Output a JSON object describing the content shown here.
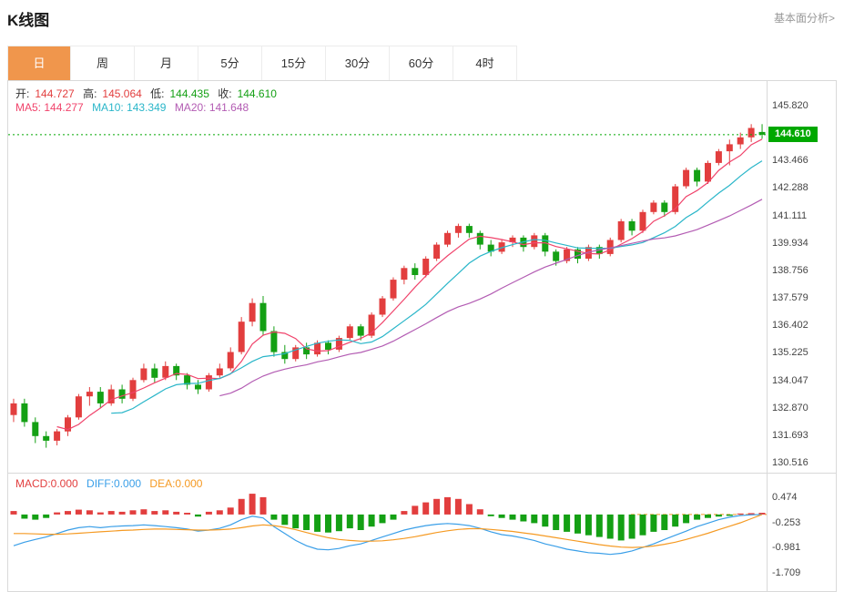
{
  "header": {
    "title": "K线图",
    "link_label": "基本面分析>"
  },
  "tabs": [
    {
      "label": "日",
      "active": true
    },
    {
      "label": "周",
      "active": false
    },
    {
      "label": "月",
      "active": false
    },
    {
      "label": "5分",
      "active": false
    },
    {
      "label": "15分",
      "active": false
    },
    {
      "label": "30分",
      "active": false
    },
    {
      "label": "60分",
      "active": false
    },
    {
      "label": "4时",
      "active": false
    }
  ],
  "ohlc": {
    "open_label": "开:",
    "open": "144.727",
    "high_label": "高:",
    "high": "145.064",
    "low_label": "低:",
    "low": "144.435",
    "close_label": "收:",
    "close": "144.610"
  },
  "ma_readout": {
    "ma5": "MA5: 144.277",
    "ma10": "MA10: 143.349",
    "ma20": "MA20: 141.648"
  },
  "macd_readout": {
    "macd": "MACD:0.000",
    "diff": "DIFF:0.000",
    "dea": "DEA:0.000"
  },
  "colors": {
    "up": "#e23e3e",
    "down": "#14a014",
    "ma5": "#f0436b",
    "ma10": "#2ab6c9",
    "ma20": "#b35cb3",
    "diff": "#3a9fe8",
    "dea": "#f59a23",
    "price_line": "#00a800",
    "tab_active": "#f0964c"
  },
  "chart_data": {
    "type": "candlestick+macd",
    "title": "K线图",
    "legend_position": "top-left",
    "grid": false,
    "current_price": 144.61,
    "current_price_label": "144.610",
    "main": {
      "ylim": [
        130.13,
        146.91
      ],
      "axis_ticks": [
        "145.820",
        "143.466",
        "142.288",
        "141.111",
        "139.934",
        "138.756",
        "137.579",
        "136.402",
        "135.225",
        "134.047",
        "132.870",
        "131.693",
        "130.516"
      ],
      "candles_ohlc": [
        [
          132.6,
          133.3,
          132.3,
          133.1
        ],
        [
          133.1,
          133.3,
          132.1,
          132.3
        ],
        [
          132.3,
          132.5,
          131.4,
          131.7
        ],
        [
          131.7,
          131.9,
          131.2,
          131.5
        ],
        [
          131.5,
          132.0,
          131.3,
          131.9
        ],
        [
          131.9,
          132.6,
          131.7,
          132.5
        ],
        [
          132.5,
          133.5,
          132.4,
          133.4
        ],
        [
          133.4,
          133.8,
          133.0,
          133.6
        ],
        [
          133.6,
          133.8,
          132.9,
          133.1
        ],
        [
          133.1,
          133.9,
          133.0,
          133.7
        ],
        [
          133.7,
          133.9,
          133.1,
          133.3
        ],
        [
          133.3,
          134.2,
          133.2,
          134.1
        ],
        [
          134.1,
          134.8,
          134.0,
          134.6
        ],
        [
          134.6,
          134.8,
          134.0,
          134.2
        ],
        [
          134.2,
          134.9,
          134.1,
          134.7
        ],
        [
          134.7,
          134.8,
          134.1,
          134.3
        ],
        [
          134.3,
          134.4,
          133.7,
          133.9
        ],
        [
          133.9,
          134.1,
          133.5,
          133.7
        ],
        [
          133.7,
          134.4,
          133.6,
          134.3
        ],
        [
          134.3,
          134.8,
          134.2,
          134.6
        ],
        [
          134.6,
          135.5,
          134.5,
          135.3
        ],
        [
          135.3,
          136.8,
          135.2,
          136.6
        ],
        [
          136.6,
          137.6,
          136.4,
          137.4
        ],
        [
          137.4,
          137.7,
          136.0,
          136.2
        ],
        [
          136.2,
          136.4,
          135.1,
          135.3
        ],
        [
          135.3,
          135.6,
          134.8,
          135.0
        ],
        [
          135.0,
          135.6,
          134.9,
          135.5
        ],
        [
          135.5,
          135.7,
          135.0,
          135.2
        ],
        [
          135.2,
          135.8,
          135.1,
          135.7
        ],
        [
          135.7,
          135.8,
          135.2,
          135.4
        ],
        [
          135.4,
          136.0,
          135.3,
          135.9
        ],
        [
          135.9,
          136.5,
          135.8,
          136.4
        ],
        [
          136.4,
          136.5,
          135.8,
          136.0
        ],
        [
          136.0,
          137.0,
          135.9,
          136.9
        ],
        [
          136.9,
          137.7,
          136.8,
          137.6
        ],
        [
          137.6,
          138.5,
          137.5,
          138.4
        ],
        [
          138.4,
          139.0,
          138.2,
          138.9
        ],
        [
          138.9,
          139.1,
          138.4,
          138.6
        ],
        [
          138.6,
          139.4,
          138.5,
          139.3
        ],
        [
          139.3,
          140.0,
          139.2,
          139.9
        ],
        [
          139.9,
          140.5,
          139.8,
          140.4
        ],
        [
          140.4,
          140.8,
          140.2,
          140.7
        ],
        [
          140.7,
          140.8,
          140.2,
          140.4
        ],
        [
          140.4,
          140.5,
          139.7,
          139.9
        ],
        [
          139.9,
          140.1,
          139.4,
          139.6
        ],
        [
          139.6,
          140.1,
          139.5,
          140.0
        ],
        [
          140.0,
          140.3,
          139.8,
          140.2
        ],
        [
          140.2,
          140.3,
          139.6,
          139.8
        ],
        [
          139.8,
          140.4,
          139.7,
          140.3
        ],
        [
          140.3,
          140.4,
          139.4,
          139.6
        ],
        [
          139.6,
          139.7,
          139.0,
          139.2
        ],
        [
          139.2,
          139.8,
          139.1,
          139.7
        ],
        [
          139.7,
          139.8,
          139.1,
          139.3
        ],
        [
          139.3,
          139.9,
          139.2,
          139.8
        ],
        [
          139.8,
          139.9,
          139.3,
          139.5
        ],
        [
          139.5,
          140.2,
          139.4,
          140.1
        ],
        [
          140.1,
          141.0,
          140.0,
          140.9
        ],
        [
          140.9,
          141.0,
          140.3,
          140.5
        ],
        [
          140.5,
          141.4,
          140.4,
          141.3
        ],
        [
          141.3,
          141.8,
          141.2,
          141.7
        ],
        [
          141.7,
          141.8,
          141.1,
          141.3
        ],
        [
          141.3,
          142.5,
          141.2,
          142.4
        ],
        [
          142.4,
          143.2,
          142.3,
          143.1
        ],
        [
          143.1,
          143.2,
          142.4,
          142.6
        ],
        [
          142.6,
          143.5,
          142.5,
          143.4
        ],
        [
          143.4,
          144.0,
          143.3,
          143.9
        ],
        [
          143.9,
          144.4,
          143.3,
          144.2
        ],
        [
          144.2,
          144.7,
          144.0,
          144.5
        ],
        [
          144.5,
          145.064,
          144.3,
          144.9
        ],
        [
          144.727,
          145.064,
          144.435,
          144.61
        ]
      ],
      "moving_average_windows": [
        5,
        10,
        20
      ]
    },
    "macd": {
      "ylim": [
        -2.21,
        1.18
      ],
      "axis_ticks": [
        "0.474",
        "-0.253",
        "-0.981",
        "-1.709"
      ],
      "hist": [
        0.1,
        -0.12,
        -0.15,
        -0.1,
        0.06,
        0.1,
        0.14,
        0.12,
        0.06,
        0.1,
        0.08,
        0.12,
        0.15,
        0.1,
        0.12,
        0.08,
        0.05,
        -0.06,
        0.08,
        0.12,
        0.2,
        0.45,
        0.6,
        0.5,
        -0.15,
        -0.3,
        -0.4,
        -0.45,
        -0.5,
        -0.52,
        -0.48,
        -0.4,
        -0.45,
        -0.35,
        -0.25,
        -0.15,
        0.1,
        0.25,
        0.35,
        0.45,
        0.5,
        0.45,
        0.3,
        0.15,
        -0.05,
        -0.1,
        -0.15,
        -0.2,
        -0.25,
        -0.35,
        -0.45,
        -0.5,
        -0.55,
        -0.6,
        -0.65,
        -0.7,
        -0.75,
        -0.7,
        -0.6,
        -0.5,
        -0.45,
        -0.35,
        -0.25,
        -0.15,
        -0.1,
        -0.06,
        -0.04,
        0.03,
        0.04,
        0.05
      ],
      "diff": [
        -0.9,
        -0.8,
        -0.72,
        -0.65,
        -0.55,
        -0.45,
        -0.38,
        -0.35,
        -0.38,
        -0.35,
        -0.33,
        -0.32,
        -0.3,
        -0.32,
        -0.35,
        -0.38,
        -0.42,
        -0.48,
        -0.45,
        -0.4,
        -0.3,
        -0.15,
        -0.05,
        -0.1,
        -0.35,
        -0.55,
        -0.75,
        -0.9,
        -1.0,
        -1.02,
        -0.98,
        -0.9,
        -0.85,
        -0.75,
        -0.65,
        -0.55,
        -0.45,
        -0.38,
        -0.32,
        -0.28,
        -0.26,
        -0.28,
        -0.32,
        -0.4,
        -0.5,
        -0.58,
        -0.62,
        -0.68,
        -0.75,
        -0.85,
        -0.92,
        -1.0,
        -1.05,
        -1.1,
        -1.12,
        -1.15,
        -1.12,
        -1.05,
        -0.95,
        -0.85,
        -0.72,
        -0.6,
        -0.48,
        -0.35,
        -0.25,
        -0.15,
        -0.08,
        -0.03,
        -0.01,
        0.0
      ],
      "dea": [
        -0.55,
        -0.55,
        -0.56,
        -0.57,
        -0.57,
        -0.56,
        -0.54,
        -0.52,
        -0.5,
        -0.48,
        -0.46,
        -0.45,
        -0.43,
        -0.42,
        -0.42,
        -0.43,
        -0.44,
        -0.45,
        -0.45,
        -0.44,
        -0.42,
        -0.38,
        -0.33,
        -0.3,
        -0.32,
        -0.37,
        -0.44,
        -0.52,
        -0.6,
        -0.67,
        -0.72,
        -0.75,
        -0.77,
        -0.77,
        -0.76,
        -0.73,
        -0.69,
        -0.64,
        -0.58,
        -0.52,
        -0.47,
        -0.43,
        -0.41,
        -0.41,
        -0.43,
        -0.46,
        -0.49,
        -0.53,
        -0.57,
        -0.62,
        -0.67,
        -0.72,
        -0.77,
        -0.82,
        -0.87,
        -0.91,
        -0.94,
        -0.95,
        -0.94,
        -0.91,
        -0.86,
        -0.8,
        -0.72,
        -0.63,
        -0.54,
        -0.44,
        -0.34,
        -0.24,
        -0.12,
        0.0
      ]
    }
  }
}
